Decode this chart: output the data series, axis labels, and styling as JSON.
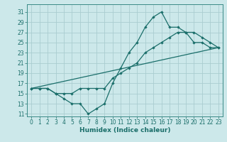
{
  "xlabel": "Humidex (Indice chaleur)",
  "bg_color": "#cce8ea",
  "grid_color": "#aacdd0",
  "line_color": "#1a6e6a",
  "spine_color": "#3a8a86",
  "xlim": [
    -0.5,
    23.5
  ],
  "ylim": [
    10.5,
    32.5
  ],
  "xticks": [
    0,
    1,
    2,
    3,
    4,
    5,
    6,
    7,
    8,
    9,
    10,
    11,
    12,
    13,
    14,
    15,
    16,
    17,
    18,
    19,
    20,
    21,
    22,
    23
  ],
  "yticks": [
    11,
    13,
    15,
    17,
    19,
    21,
    23,
    25,
    27,
    29,
    31
  ],
  "line1_x": [
    0,
    1,
    2,
    3,
    4,
    5,
    6,
    7,
    8,
    9,
    10,
    11,
    12,
    13,
    14,
    15,
    16,
    17,
    18,
    19,
    20,
    21,
    22,
    23
  ],
  "line1_y": [
    16,
    16,
    16,
    15,
    14,
    13,
    13,
    11,
    12,
    13,
    17,
    20,
    23,
    25,
    28,
    30,
    31,
    28,
    28,
    27,
    25,
    25,
    24,
    24
  ],
  "line2_x": [
    0,
    23
  ],
  "line2_y": [
    16,
    24
  ],
  "line3_x": [
    0,
    1,
    2,
    3,
    4,
    5,
    6,
    7,
    8,
    9,
    10,
    11,
    12,
    13,
    14,
    15,
    16,
    17,
    18,
    19,
    20,
    21,
    22,
    23
  ],
  "line3_y": [
    16,
    16,
    16,
    15,
    15,
    15,
    16,
    16,
    16,
    16,
    18,
    19,
    20,
    21,
    23,
    24,
    25,
    26,
    27,
    27,
    27,
    26,
    25,
    24
  ],
  "tick_fontsize": 5.5,
  "xlabel_fontsize": 6.5,
  "marker": "D",
  "markersize": 2.2
}
